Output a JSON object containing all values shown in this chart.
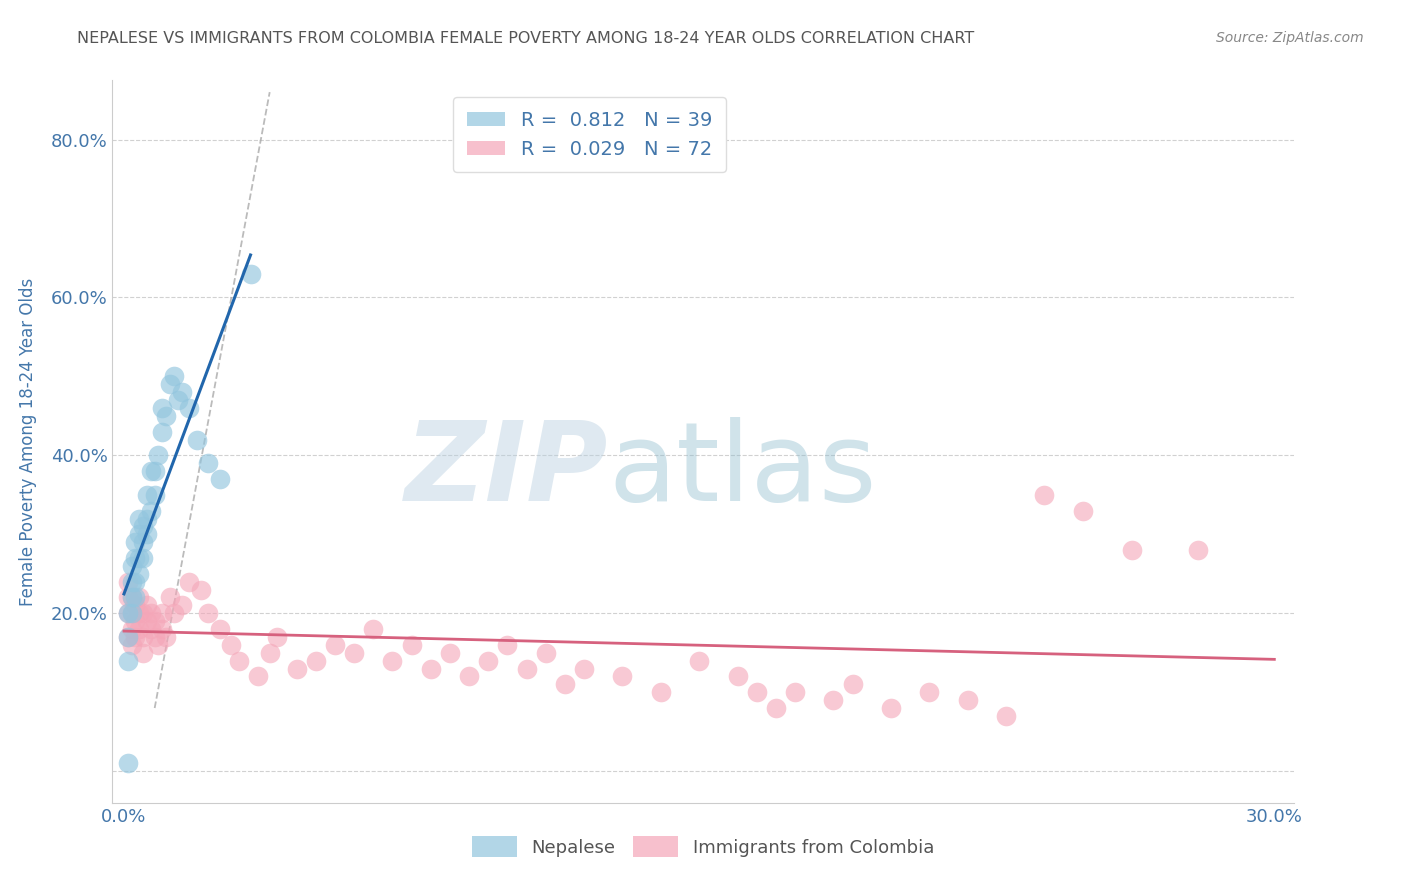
{
  "title": "NEPALESE VS IMMIGRANTS FROM COLOMBIA FEMALE POVERTY AMONG 18-24 YEAR OLDS CORRELATION CHART",
  "source": "Source: ZipAtlas.com",
  "ylabel": "Female Poverty Among 18-24 Year Olds",
  "xlabel": "",
  "xlim_min": -0.003,
  "xlim_max": 0.305,
  "ylim_min": -0.04,
  "ylim_max": 0.875,
  "legend_blue_r": "R =  0.812",
  "legend_blue_n": "N = 39",
  "legend_pink_r": "R =  0.029",
  "legend_pink_n": "N = 72",
  "blue_color": "#92c5de",
  "pink_color": "#f4a6b8",
  "trend_blue_color": "#2166ac",
  "trend_pink_color": "#d6617e",
  "watermark_zip": "ZIP",
  "watermark_atlas": "atlas",
  "watermark_color_zip": "#b8d4e8",
  "watermark_color_atlas": "#8ab4cc",
  "title_color": "#555555",
  "axis_label_color": "#4477aa",
  "tick_color": "#4477aa",
  "grid_color": "#cccccc",
  "nepalese_x": [
    0.001,
    0.001,
    0.001,
    0.002,
    0.002,
    0.002,
    0.002,
    0.003,
    0.003,
    0.003,
    0.003,
    0.004,
    0.004,
    0.004,
    0.004,
    0.005,
    0.005,
    0.005,
    0.006,
    0.006,
    0.006,
    0.007,
    0.007,
    0.008,
    0.008,
    0.009,
    0.01,
    0.01,
    0.011,
    0.012,
    0.013,
    0.014,
    0.015,
    0.017,
    0.019,
    0.022,
    0.025,
    0.001,
    0.033
  ],
  "nepalese_y": [
    0.14,
    0.17,
    0.2,
    0.2,
    0.22,
    0.24,
    0.26,
    0.22,
    0.24,
    0.27,
    0.29,
    0.25,
    0.27,
    0.3,
    0.32,
    0.27,
    0.29,
    0.31,
    0.3,
    0.32,
    0.35,
    0.33,
    0.38,
    0.35,
    0.38,
    0.4,
    0.43,
    0.46,
    0.45,
    0.49,
    0.5,
    0.47,
    0.48,
    0.46,
    0.42,
    0.39,
    0.37,
    0.01,
    0.63
  ],
  "colombia_x": [
    0.001,
    0.001,
    0.001,
    0.001,
    0.002,
    0.002,
    0.002,
    0.002,
    0.003,
    0.003,
    0.003,
    0.004,
    0.004,
    0.004,
    0.005,
    0.005,
    0.005,
    0.006,
    0.006,
    0.007,
    0.007,
    0.008,
    0.008,
    0.009,
    0.01,
    0.01,
    0.011,
    0.012,
    0.013,
    0.015,
    0.017,
    0.02,
    0.022,
    0.025,
    0.028,
    0.03,
    0.035,
    0.038,
    0.04,
    0.045,
    0.05,
    0.055,
    0.06,
    0.065,
    0.07,
    0.075,
    0.08,
    0.085,
    0.09,
    0.095,
    0.1,
    0.105,
    0.11,
    0.115,
    0.12,
    0.13,
    0.14,
    0.15,
    0.16,
    0.165,
    0.17,
    0.175,
    0.185,
    0.19,
    0.2,
    0.21,
    0.22,
    0.23,
    0.24,
    0.25,
    0.263,
    0.28
  ],
  "colombia_y": [
    0.2,
    0.22,
    0.24,
    0.17,
    0.18,
    0.2,
    0.22,
    0.16,
    0.19,
    0.21,
    0.17,
    0.2,
    0.22,
    0.18,
    0.2,
    0.17,
    0.15,
    0.19,
    0.21,
    0.18,
    0.2,
    0.17,
    0.19,
    0.16,
    0.2,
    0.18,
    0.17,
    0.22,
    0.2,
    0.21,
    0.24,
    0.23,
    0.2,
    0.18,
    0.16,
    0.14,
    0.12,
    0.15,
    0.17,
    0.13,
    0.14,
    0.16,
    0.15,
    0.18,
    0.14,
    0.16,
    0.13,
    0.15,
    0.12,
    0.14,
    0.16,
    0.13,
    0.15,
    0.11,
    0.13,
    0.12,
    0.1,
    0.14,
    0.12,
    0.1,
    0.08,
    0.1,
    0.09,
    0.11,
    0.08,
    0.1,
    0.09,
    0.07,
    0.35,
    0.33,
    0.28,
    0.28
  ],
  "figsize": [
    14.06,
    8.92
  ],
  "dpi": 100
}
